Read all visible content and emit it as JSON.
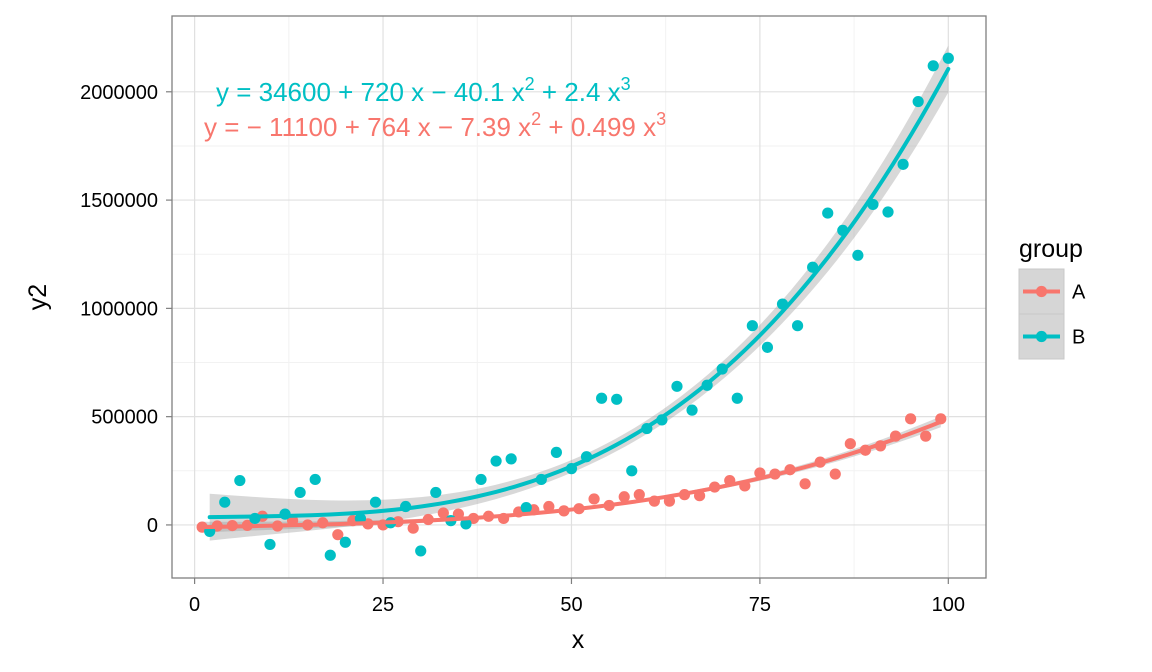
{
  "chart_data": {
    "type": "scatter",
    "xlabel": "x",
    "ylabel": "y2",
    "xlim": [
      -3,
      105
    ],
    "ylim": [
      -245000,
      2350000
    ],
    "x_ticks": [
      0,
      25,
      50,
      75,
      100
    ],
    "x_tick_labels": [
      "0",
      "25",
      "50",
      "75",
      "100"
    ],
    "y_ticks": [
      0,
      500000,
      1000000,
      1500000,
      2000000
    ],
    "y_tick_labels": [
      "0",
      "500000",
      "1000000",
      "1500000",
      "2000000"
    ],
    "grid": true,
    "legend": {
      "title": "group",
      "position": "right",
      "entries": [
        "A",
        "B"
      ]
    },
    "colors": {
      "A": "#F8766D",
      "B": "#00BFC4",
      "ribbon": "#999999"
    },
    "series": [
      {
        "name": "A",
        "color": "#F8766D",
        "fit": {
          "intercept": -11100,
          "b1": 764,
          "b2": -7.39,
          "b3": 0.499
        },
        "equation": [
          "y = − 11100 + 764 x − 7.39 x",
          "2",
          " + 0.499 x",
          "3"
        ],
        "points": [
          [
            1,
            -10000
          ],
          [
            3,
            -5000
          ],
          [
            5,
            -3000
          ],
          [
            7,
            -2000
          ],
          [
            9,
            40000
          ],
          [
            11,
            -5000
          ],
          [
            13,
            20000
          ],
          [
            15,
            0
          ],
          [
            17,
            10000
          ],
          [
            19,
            -45000
          ],
          [
            21,
            20000
          ],
          [
            23,
            5000
          ],
          [
            25,
            0
          ],
          [
            27,
            15000
          ],
          [
            29,
            -15000
          ],
          [
            31,
            25000
          ],
          [
            33,
            55000
          ],
          [
            35,
            50000
          ],
          [
            37,
            30000
          ],
          [
            39,
            40000
          ],
          [
            41,
            30000
          ],
          [
            43,
            60000
          ],
          [
            45,
            70000
          ],
          [
            47,
            85000
          ],
          [
            49,
            65000
          ],
          [
            51,
            75000
          ],
          [
            53,
            120000
          ],
          [
            55,
            90000
          ],
          [
            57,
            130000
          ],
          [
            59,
            140000
          ],
          [
            61,
            110000
          ],
          [
            63,
            110000
          ],
          [
            65,
            140000
          ],
          [
            67,
            135000
          ],
          [
            69,
            175000
          ],
          [
            71,
            205000
          ],
          [
            73,
            180000
          ],
          [
            75,
            240000
          ],
          [
            77,
            235000
          ],
          [
            79,
            255000
          ],
          [
            81,
            190000
          ],
          [
            83,
            290000
          ],
          [
            85,
            235000
          ],
          [
            87,
            375000
          ],
          [
            89,
            345000
          ],
          [
            91,
            365000
          ],
          [
            93,
            410000
          ],
          [
            95,
            490000
          ],
          [
            97,
            410000
          ],
          [
            99,
            490000
          ]
        ]
      },
      {
        "name": "B",
        "color": "#00BFC4",
        "fit": {
          "intercept": 34600,
          "b1": 720,
          "b2": -40.1,
          "b3": 2.4
        },
        "equation": [
          "y = 34600 + 720 x − 40.1 x",
          "2",
          " + 2.4 x",
          "3"
        ],
        "points": [
          [
            2,
            -30000
          ],
          [
            4,
            105000
          ],
          [
            6,
            205000
          ],
          [
            8,
            30000
          ],
          [
            10,
            -90000
          ],
          [
            12,
            50000
          ],
          [
            14,
            150000
          ],
          [
            16,
            210000
          ],
          [
            18,
            -140000
          ],
          [
            20,
            -80000
          ],
          [
            22,
            30000
          ],
          [
            24,
            105000
          ],
          [
            26,
            10000
          ],
          [
            28,
            85000
          ],
          [
            30,
            -120000
          ],
          [
            32,
            150000
          ],
          [
            34,
            20000
          ],
          [
            36,
            5000
          ],
          [
            38,
            210000
          ],
          [
            40,
            295000
          ],
          [
            42,
            305000
          ],
          [
            44,
            80000
          ],
          [
            46,
            210000
          ],
          [
            48,
            335000
          ],
          [
            50,
            260000
          ],
          [
            52,
            315000
          ],
          [
            54,
            585000
          ],
          [
            56,
            580000
          ],
          [
            58,
            250000
          ],
          [
            60,
            445000
          ],
          [
            62,
            485000
          ],
          [
            64,
            640000
          ],
          [
            66,
            530000
          ],
          [
            68,
            645000
          ],
          [
            70,
            720000
          ],
          [
            72,
            585000
          ],
          [
            74,
            920000
          ],
          [
            76,
            820000
          ],
          [
            78,
            1020000
          ],
          [
            80,
            920000
          ],
          [
            82,
            1190000
          ],
          [
            84,
            1440000
          ],
          [
            86,
            1360000
          ],
          [
            88,
            1245000
          ],
          [
            90,
            1480000
          ],
          [
            92,
            1445000
          ],
          [
            94,
            1665000
          ],
          [
            96,
            1955000
          ],
          [
            98,
            2120000
          ],
          [
            100,
            2155000
          ]
        ]
      }
    ]
  }
}
